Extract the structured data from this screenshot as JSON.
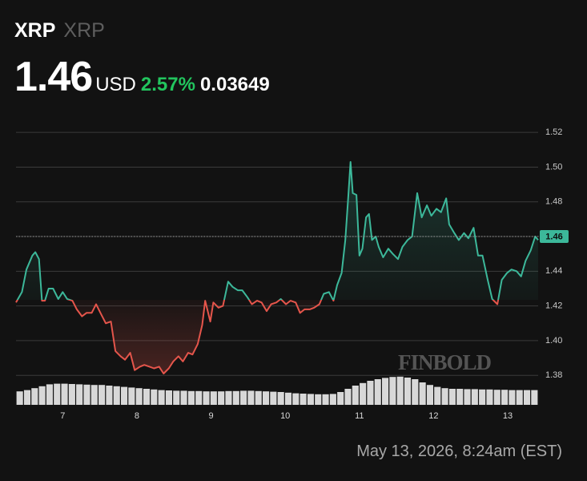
{
  "header": {
    "symbol": "XRP",
    "name": "XRP",
    "price": 1.46,
    "currency": "USD",
    "change_percent": "2.57%",
    "change": 0.03649
  },
  "watermark": "FINBOLD",
  "footer": {
    "timestamp": "May 13, 2026, 8:24am (EST)"
  },
  "chart_data": {
    "type": "line",
    "x": [
      6.37,
      6.45,
      6.51,
      6.59,
      6.63,
      6.68,
      6.72,
      6.76,
      6.81,
      6.87,
      6.94,
      7.0,
      7.06,
      7.13,
      7.19,
      7.26,
      7.32,
      7.39,
      7.45,
      7.52,
      7.58,
      7.65,
      7.71,
      7.78,
      7.84,
      7.91,
      7.97,
      8.04,
      8.1,
      8.17,
      8.23,
      8.3,
      8.36,
      8.43,
      8.49,
      8.56,
      8.62,
      8.69,
      8.75,
      8.82,
      8.88,
      8.92,
      8.99,
      9.03,
      9.1,
      9.16,
      9.23,
      9.29,
      9.36,
      9.42,
      9.49,
      9.55,
      9.62,
      9.68,
      9.75,
      9.81,
      9.88,
      9.94,
      10.01,
      10.07,
      10.14,
      10.2,
      10.26,
      10.33,
      10.39,
      10.46,
      10.52,
      10.59,
      10.65,
      10.7,
      10.76,
      10.81,
      10.85,
      10.88,
      10.91,
      10.96,
      11.0,
      11.04,
      11.09,
      11.13,
      11.17,
      11.22,
      11.26,
      11.32,
      11.39,
      11.45,
      11.52,
      11.58,
      11.65,
      11.71,
      11.78,
      11.84,
      11.91,
      11.97,
      12.04,
      12.1,
      12.17,
      12.21,
      12.28,
      12.34,
      12.41,
      12.47,
      12.54,
      12.6,
      12.66,
      12.73,
      12.79,
      12.86,
      12.92,
      12.99,
      13.05,
      13.12,
      13.18,
      13.24,
      13.31,
      13.37,
      13.41
    ],
    "values": [
      1.422,
      1.428,
      1.441,
      1.449,
      1.451,
      1.447,
      1.423,
      1.423,
      1.43,
      1.43,
      1.424,
      1.428,
      1.424,
      1.423,
      1.418,
      1.414,
      1.416,
      1.416,
      1.421,
      1.415,
      1.41,
      1.411,
      1.394,
      1.391,
      1.389,
      1.393,
      1.383,
      1.385,
      1.386,
      1.385,
      1.384,
      1.385,
      1.381,
      1.384,
      1.388,
      1.391,
      1.388,
      1.393,
      1.392,
      1.398,
      1.409,
      1.423,
      1.411,
      1.422,
      1.419,
      1.42,
      1.434,
      1.431,
      1.429,
      1.429,
      1.425,
      1.421,
      1.423,
      1.422,
      1.417,
      1.421,
      1.422,
      1.424,
      1.421,
      1.423,
      1.422,
      1.416,
      1.418,
      1.418,
      1.419,
      1.421,
      1.427,
      1.428,
      1.423,
      1.432,
      1.439,
      1.458,
      1.483,
      1.503,
      1.485,
      1.484,
      1.449,
      1.453,
      1.471,
      1.473,
      1.458,
      1.46,
      1.454,
      1.448,
      1.453,
      1.45,
      1.447,
      1.454,
      1.458,
      1.46,
      1.485,
      1.471,
      1.478,
      1.472,
      1.476,
      1.474,
      1.482,
      1.467,
      1.462,
      1.458,
      1.462,
      1.459,
      1.465,
      1.449,
      1.449,
      1.435,
      1.424,
      1.421,
      1.435,
      1.439,
      1.441,
      1.44,
      1.437,
      1.446,
      1.452,
      1.46,
      1.458
    ],
    "color": "#3cb89a",
    "color_below": "#e5554b",
    "volume_values": [
      42,
      46,
      52,
      58,
      64,
      66,
      66,
      65,
      64,
      63,
      62,
      62,
      60,
      58,
      56,
      54,
      52,
      50,
      48,
      46,
      45,
      44,
      44,
      43,
      43,
      42,
      42,
      42,
      43,
      43,
      44,
      44,
      43,
      42,
      41,
      40,
      38,
      36,
      35,
      34,
      33,
      33,
      34,
      40,
      50,
      60,
      68,
      75,
      80,
      84,
      87,
      88,
      85,
      80,
      70,
      62,
      56,
      52,
      50,
      50,
      49,
      49,
      48,
      48,
      47,
      47,
      46,
      46,
      46,
      46
    ],
    "volume_color": "#d8d8d8",
    "y2lim": [
      0,
      100
    ],
    "xlim": [
      6.37,
      13.41
    ],
    "xticks": [
      7,
      8,
      9,
      10,
      11,
      12,
      13
    ],
    "ylim": [
      1.363,
      1.527
    ],
    "yticks": [
      1.38,
      {
        "value": 1.4,
        "label": "1.40"
      },
      1.42,
      1.44,
      1.46,
      1.48,
      {
        "value": 1.5,
        "label": "1.50"
      },
      1.52
    ],
    "grid": true
  }
}
